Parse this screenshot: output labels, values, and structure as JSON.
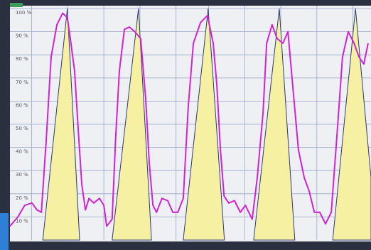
{
  "chart_data": {
    "type": "line",
    "xlim": [
      0,
      100
    ],
    "ylim": [
      0,
      100
    ],
    "xticks": [
      6,
      16,
      26,
      36,
      46,
      55,
      65,
      75,
      85,
      95
    ],
    "yticks": [
      {
        "value": 10,
        "label": "10 %"
      },
      {
        "value": 20,
        "label": "20 %"
      },
      {
        "value": 30,
        "label": "30 %"
      },
      {
        "value": 40,
        "label": "40 %"
      },
      {
        "value": 50,
        "label": "50 %"
      },
      {
        "value": 60,
        "label": "60 %"
      },
      {
        "value": 70,
        "label": "70 %"
      },
      {
        "value": 80,
        "label": "80 %"
      },
      {
        "value": 90,
        "label": "90 %"
      },
      {
        "value": 100,
        "label": "100 %"
      }
    ],
    "grid": true,
    "series": [
      {
        "type": "area",
        "color": "#f6f0a2",
        "edge_color": "#2c3a78",
        "x": [
          9.1,
          15.9,
          19.3,
          23,
          28.3,
          35.6,
          39.2,
          44,
          48.0,
          54.9,
          59.4,
          63,
          67.5,
          74.6,
          78.9,
          84,
          89.4,
          95.7,
          100
        ],
        "values": [
          0,
          100,
          0,
          null,
          0,
          100,
          0,
          null,
          0,
          100,
          0,
          null,
          0,
          100,
          0,
          null,
          0,
          100,
          27
        ]
      },
      {
        "type": "line",
        "color": "#d024d4",
        "x": [
          0.0,
          2.2,
          4.1,
          6.1,
          7.5,
          8.7,
          10.0,
          11.4,
          13.0,
          14.6,
          15.9,
          16.9,
          17.9,
          18.9,
          19.9,
          20.9,
          21.9,
          23.2,
          24.8,
          26.0,
          26.8,
          28.3,
          29.3,
          30.3,
          31.7,
          33.1,
          34.6,
          36.2,
          37.6,
          38.6,
          39.6,
          40.6,
          42.1,
          43.7,
          45.1,
          46.5,
          48.0,
          49.4,
          50.8,
          52.8,
          54.7,
          56.3,
          57.3,
          58.3,
          59.3,
          60.6,
          62.2,
          63.8,
          65.2,
          67.1,
          68.5,
          70.1,
          71.1,
          72.6,
          74.0,
          75.6,
          77.0,
          78.3,
          79.9,
          81.5,
          82.9,
          84.3,
          85.8,
          87.4,
          89.0,
          90.7,
          92.1,
          93.7,
          95.3,
          96.7,
          98.0,
          99.2
        ],
        "values": [
          6,
          10,
          15,
          16,
          13,
          12,
          42,
          79,
          93,
          98,
          96,
          85,
          73,
          48,
          24,
          13,
          18,
          16,
          18,
          15,
          6,
          9,
          45,
          73,
          91,
          92,
          90,
          87,
          61,
          33,
          15,
          12,
          18,
          17,
          12,
          12,
          18,
          58,
          85,
          94,
          97,
          85,
          67,
          39,
          19,
          16,
          17,
          12,
          15,
          9,
          27,
          55,
          85,
          93,
          87,
          85,
          90,
          67,
          39,
          27,
          21,
          12,
          12,
          7,
          12,
          48,
          79,
          90,
          85,
          79,
          76,
          85
        ]
      }
    ]
  }
}
